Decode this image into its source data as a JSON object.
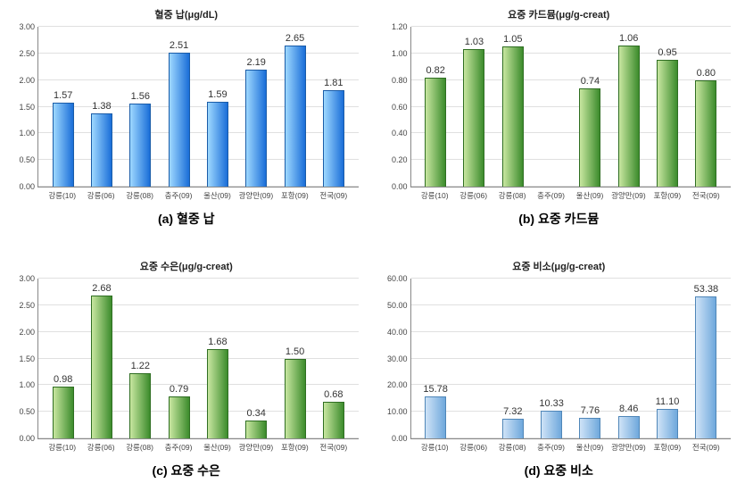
{
  "categories": [
    "강릉(10)",
    "강릉(06)",
    "강릉(08)",
    "충주(09)",
    "울산(09)",
    "광양만(09)",
    "포항(09)",
    "전국(09)"
  ],
  "panels": [
    {
      "key": "a",
      "title": "혈중 납(μg/dL)",
      "caption": "(a) 혈중 납",
      "type": "bar",
      "values": [
        1.57,
        1.38,
        1.56,
        2.51,
        1.59,
        2.19,
        2.65,
        1.81
      ],
      "ylim": [
        0,
        3.0
      ],
      "ytick_step": 0.5,
      "ytick_decimals": 2,
      "val_decimals": 2,
      "bar_gradient": [
        "#9ed8ff",
        "#1a6ed8"
      ],
      "bar_border": "#1a5ca8",
      "grid_color": "#e0e0e0"
    },
    {
      "key": "b",
      "title": "요중 카드뮴(μg/g-creat)",
      "caption": "(b) 요중 카드뮴",
      "type": "bar",
      "values": [
        0.82,
        1.03,
        1.05,
        null,
        0.74,
        1.06,
        0.95,
        0.8
      ],
      "ylim": [
        0,
        1.2
      ],
      "ytick_step": 0.2,
      "ytick_decimals": 2,
      "val_decimals": 2,
      "bar_gradient": [
        "#c8e6a0",
        "#3c8c2c"
      ],
      "bar_border": "#2f6e22",
      "grid_color": "#e0e0e0"
    },
    {
      "key": "c",
      "title": "요중 수은(μg/g-creat)",
      "caption": "(c) 요중 수은",
      "type": "bar",
      "values": [
        0.98,
        2.68,
        1.22,
        0.79,
        1.68,
        0.34,
        1.5,
        0.68
      ],
      "ylim": [
        0,
        3.0
      ],
      "ytick_step": 0.5,
      "ytick_decimals": 2,
      "val_decimals": 2,
      "bar_gradient": [
        "#c8e6a0",
        "#3c8c2c"
      ],
      "bar_border": "#2f6e22",
      "grid_color": "#e0e0e0"
    },
    {
      "key": "d",
      "title": "요중 비소(μg/g-creat)",
      "caption": "(d) 요중 비소",
      "type": "bar",
      "values": [
        15.78,
        null,
        7.32,
        10.33,
        7.76,
        8.46,
        11.1,
        53.38
      ],
      "ylim": [
        0,
        60
      ],
      "ytick_step": 10,
      "ytick_decimals": 2,
      "val_decimals": 2,
      "bar_gradient": [
        "#cfe3f7",
        "#6fa8dc"
      ],
      "bar_border": "#4f86b8",
      "grid_color": "#e0e0e0"
    }
  ],
  "title_fontsize": 11,
  "label_fontsize": 9,
  "caption_fontsize": 14,
  "background_color": "#ffffff"
}
